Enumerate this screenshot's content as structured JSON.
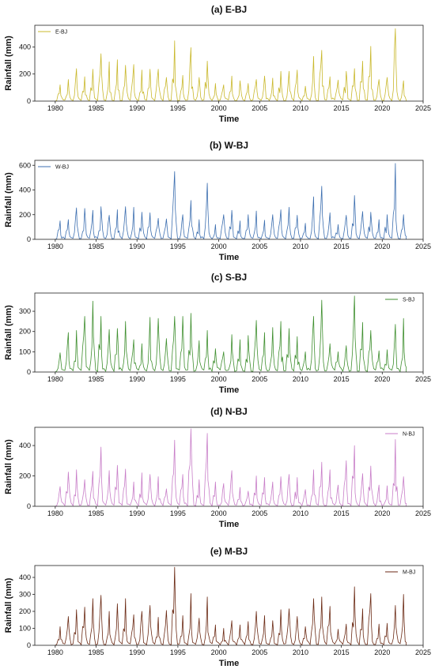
{
  "chart_data": [
    {
      "type": "line",
      "title": "(a) E-BJ",
      "xlabel": "Time",
      "ylabel": "Rainfall (mm)",
      "xlim": [
        1977.5,
        2025
      ],
      "ylim": [
        0,
        560
      ],
      "xticks": [
        1980,
        1985,
        1990,
        1995,
        2000,
        2005,
        2010,
        2015,
        2020,
        2025
      ],
      "yticks": [
        0,
        200,
        400
      ],
      "legend_position": "top-left",
      "series": [
        {
          "name": "E-BJ",
          "color": "#c9b82c",
          "x": [
            1980.0,
            1980.6,
            1981.6,
            1982.6,
            1983.6,
            1984.6,
            1985.6,
            1986.6,
            1987.6,
            1988.6,
            1989.6,
            1990.6,
            1991.6,
            1992.6,
            1993.6,
            1994.6,
            1995.6,
            1996.6,
            1997.6,
            1998.6,
            1999.6,
            2000.6,
            2001.6,
            2002.6,
            2003.6,
            2004.6,
            2005.6,
            2006.6,
            2007.6,
            2008.6,
            2009.6,
            2010.6,
            2011.6,
            2012.6,
            2013.6,
            2014.6,
            2015.6,
            2016.6,
            2017.6,
            2018.6,
            2019.6,
            2020.6,
            2021.6,
            2022.6,
            2022.9
          ],
          "y": [
            0,
            120,
            160,
            240,
            180,
            235,
            350,
            290,
            305,
            265,
            270,
            230,
            235,
            235,
            175,
            445,
            190,
            395,
            175,
            295,
            130,
            120,
            185,
            150,
            130,
            160,
            185,
            170,
            220,
            220,
            230,
            110,
            330,
            375,
            180,
            155,
            220,
            240,
            295,
            405,
            160,
            175,
            535,
            150,
            0
          ]
        }
      ]
    },
    {
      "type": "line",
      "title": "(b) W-BJ",
      "xlabel": "Time",
      "ylabel": "Rainfall (mm)",
      "xlim": [
        1977.5,
        2025
      ],
      "ylim": [
        0,
        640
      ],
      "xticks": [
        1980,
        1985,
        1990,
        1995,
        2000,
        2005,
        2010,
        2015,
        2020,
        2025
      ],
      "yticks": [
        0,
        200,
        400,
        600
      ],
      "legend_position": "top-left",
      "series": [
        {
          "name": "W-BJ",
          "color": "#3d6fb0",
          "x": [
            1980.0,
            1980.6,
            1981.6,
            1982.6,
            1983.6,
            1984.6,
            1985.6,
            1986.6,
            1987.6,
            1988.6,
            1989.6,
            1990.6,
            1991.6,
            1992.6,
            1993.6,
            1994.6,
            1995.6,
            1996.6,
            1997.6,
            1998.6,
            1999.6,
            2000.6,
            2001.6,
            2002.6,
            2003.6,
            2004.6,
            2005.6,
            2006.6,
            2007.6,
            2008.6,
            2009.6,
            2010.6,
            2011.6,
            2012.6,
            2013.6,
            2014.6,
            2015.6,
            2016.6,
            2017.6,
            2018.6,
            2019.6,
            2020.6,
            2021.6,
            2022.6,
            2022.9
          ],
          "y": [
            0,
            150,
            160,
            255,
            250,
            235,
            265,
            195,
            240,
            265,
            260,
            220,
            215,
            170,
            165,
            550,
            200,
            315,
            160,
            455,
            120,
            200,
            235,
            150,
            200,
            230,
            155,
            200,
            240,
            260,
            195,
            130,
            345,
            430,
            215,
            120,
            195,
            355,
            225,
            220,
            160,
            200,
            615,
            200,
            0
          ]
        }
      ]
    },
    {
      "type": "line",
      "title": "(c) S-BJ",
      "xlabel": "Time",
      "ylabel": "Rainfall (mm)",
      "xlim": [
        1977.5,
        2025
      ],
      "ylim": [
        0,
        390
      ],
      "xticks": [
        1980,
        1985,
        1990,
        1995,
        2000,
        2005,
        2010,
        2015,
        2020,
        2025
      ],
      "yticks": [
        0,
        100,
        200,
        300
      ],
      "legend_position": "top-right",
      "series": [
        {
          "name": "S-BJ",
          "color": "#3f8f2f",
          "x": [
            1980.0,
            1980.6,
            1981.6,
            1982.6,
            1983.6,
            1984.6,
            1985.6,
            1986.6,
            1987.6,
            1988.6,
            1989.6,
            1990.6,
            1991.6,
            1992.6,
            1993.6,
            1994.6,
            1995.6,
            1996.6,
            1997.6,
            1998.6,
            1999.6,
            2000.6,
            2001.6,
            2002.6,
            2003.6,
            2004.6,
            2005.6,
            2006.6,
            2007.6,
            2008.6,
            2009.6,
            2010.6,
            2011.6,
            2012.6,
            2013.6,
            2014.6,
            2015.6,
            2016.6,
            2017.6,
            2018.6,
            2019.6,
            2020.6,
            2021.6,
            2022.6,
            2022.9
          ],
          "y": [
            0,
            95,
            195,
            205,
            275,
            350,
            275,
            210,
            215,
            250,
            160,
            140,
            270,
            265,
            165,
            275,
            275,
            290,
            155,
            205,
            115,
            100,
            185,
            160,
            180,
            255,
            195,
            220,
            250,
            215,
            175,
            100,
            275,
            355,
            140,
            100,
            130,
            375,
            245,
            205,
            105,
            110,
            235,
            265,
            0
          ]
        }
      ]
    },
    {
      "type": "line",
      "title": "(d) N-BJ",
      "xlabel": "Time",
      "ylabel": "Rainfall (mm)",
      "xlim": [
        1977.5,
        2025
      ],
      "ylim": [
        0,
        520
      ],
      "xticks": [
        1980,
        1985,
        1990,
        1995,
        2000,
        2005,
        2010,
        2015,
        2020,
        2025
      ],
      "yticks": [
        0,
        200,
        400
      ],
      "legend_position": "top-right",
      "series": [
        {
          "name": "N-BJ",
          "color": "#c87ec8",
          "x": [
            1980.0,
            1980.6,
            1981.6,
            1982.6,
            1983.6,
            1984.6,
            1985.6,
            1986.6,
            1987.6,
            1988.6,
            1989.6,
            1990.6,
            1991.6,
            1992.6,
            1993.6,
            1994.6,
            1995.6,
            1996.6,
            1997.6,
            1998.6,
            1999.6,
            2000.6,
            2001.6,
            2002.6,
            2003.6,
            2004.6,
            2005.6,
            2006.6,
            2007.6,
            2008.6,
            2009.6,
            2010.6,
            2011.6,
            2012.6,
            2013.6,
            2014.6,
            2015.6,
            2016.6,
            2017.6,
            2018.6,
            2019.6,
            2020.6,
            2021.6,
            2022.6,
            2022.9
          ],
          "y": [
            0,
            130,
            225,
            240,
            175,
            230,
            390,
            235,
            270,
            245,
            160,
            220,
            210,
            195,
            115,
            435,
            210,
            510,
            175,
            480,
            160,
            150,
            235,
            125,
            100,
            200,
            190,
            160,
            195,
            210,
            190,
            110,
            240,
            290,
            240,
            140,
            300,
            400,
            215,
            265,
            140,
            135,
            440,
            195,
            0
          ]
        }
      ]
    },
    {
      "type": "line",
      "title": "(e) M-BJ",
      "xlabel": "Time",
      "ylabel": "Rainfall (mm)",
      "xlim": [
        1977.5,
        2025
      ],
      "ylim": [
        0,
        470
      ],
      "xticks": [
        1980,
        1985,
        1990,
        1995,
        2000,
        2005,
        2010,
        2015,
        2020,
        2025
      ],
      "yticks": [
        0,
        100,
        200,
        300,
        400
      ],
      "legend_position": "top-right",
      "series": [
        {
          "name": "M-BJ",
          "color": "#6b2a14",
          "x": [
            1980.0,
            1980.6,
            1981.6,
            1982.6,
            1983.6,
            1984.6,
            1985.6,
            1986.6,
            1987.6,
            1988.6,
            1989.6,
            1990.6,
            1991.6,
            1992.6,
            1993.6,
            1994.6,
            1995.6,
            1996.6,
            1997.6,
            1998.6,
            1999.6,
            2000.6,
            2001.6,
            2002.6,
            2003.6,
            2004.6,
            2005.6,
            2006.6,
            2007.6,
            2008.6,
            2009.6,
            2010.6,
            2011.6,
            2012.6,
            2013.6,
            2014.6,
            2015.6,
            2016.6,
            2017.6,
            2018.6,
            2019.6,
            2020.6,
            2021.6,
            2022.6,
            2022.9
          ],
          "y": [
            0,
            110,
            170,
            210,
            225,
            275,
            295,
            200,
            245,
            275,
            180,
            200,
            235,
            165,
            205,
            460,
            175,
            305,
            160,
            285,
            120,
            100,
            145,
            120,
            140,
            200,
            175,
            145,
            210,
            215,
            170,
            110,
            275,
            285,
            230,
            95,
            125,
            345,
            215,
            305,
            125,
            130,
            235,
            300,
            0
          ]
        }
      ]
    }
  ]
}
